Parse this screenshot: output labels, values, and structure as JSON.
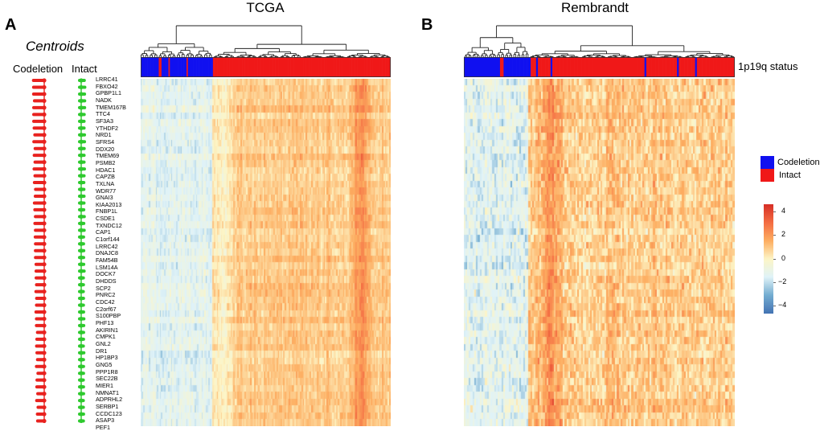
{
  "panels": {
    "a": {
      "letter": "A",
      "title": "TCGA"
    },
    "b": {
      "letter": "B",
      "title": "Rembrandt"
    }
  },
  "centroids": {
    "title": "Centroids",
    "columns": [
      {
        "label": "Codeletion",
        "color": "#e8221f"
      },
      {
        "label": "Intact",
        "color": "#2ec92e"
      }
    ]
  },
  "annotation": {
    "track_label": "1p19q status",
    "legend_title": "",
    "legend": [
      {
        "label": "Codeletion",
        "color": "#1010f0"
      },
      {
        "label": "Intact",
        "color": "#f01818"
      }
    ]
  },
  "color_scale": {
    "ticks": [
      "4",
      "2",
      "0",
      "−2",
      "−4"
    ],
    "min": -4.6,
    "max": 4.6,
    "colors": [
      "#4575b4",
      "#74add1",
      "#e0f3f8",
      "#fdf5c6",
      "#fdae61",
      "#f46d43",
      "#d73027"
    ]
  },
  "chart_data": [
    {
      "type": "heatmap",
      "title": "TCGA",
      "row_labels": [
        "LRRC41",
        "FBXO42",
        "GPBP1L1",
        "NADK",
        "TMEM167B",
        "TTC4",
        "SF3A3",
        "YTHDF2",
        "NRD1",
        "SFRS4",
        "DDX20",
        "TMEM69",
        "PSMB2",
        "HDAC1",
        "CAPZB",
        "TXLNA",
        "WDR77",
        "GNAI3",
        "KIAA2013",
        "FNBP1L",
        "CSDE1",
        "TXNDC12",
        "CAP1",
        "C1orf144",
        "LRRC42",
        "DNAJC8",
        "FAM54B",
        "LSM14A",
        "DOCK7",
        "DHDDS",
        "SCP2",
        "PNRC2",
        "CDC42",
        "C2orf67",
        "S100PBP",
        "PHF13",
        "AKIRIN1",
        "CMPK1",
        "GNL2",
        "DR1",
        "HP1BP3",
        "GNG5",
        "PPP1R8",
        "SEC22B",
        "MIER1",
        "NMNAT1",
        "ADPRHL2",
        "SERBP1",
        "CCDC123",
        "ASAP3",
        "PEF1"
      ],
      "column_groups": [
        {
          "status": "Codeletion",
          "approx_fraction": 0.29
        },
        {
          "status": "Intact",
          "approx_fraction": 0.71
        }
      ],
      "pattern": "codeletion samples mostly low (blue), intact samples mostly high (orange)",
      "color_range": [
        -4.6,
        4.6
      ]
    },
    {
      "type": "heatmap",
      "title": "Rembrandt",
      "row_labels_shared_with": "TCGA",
      "column_groups": [
        {
          "status": "Codeletion",
          "approx_fraction": 0.24
        },
        {
          "status": "Intact",
          "approx_fraction": 0.76
        }
      ],
      "pattern": "codeletion samples mostly low (blue), intact samples mostly high (orange)",
      "color_range": [
        -4.6,
        4.6
      ]
    }
  ]
}
